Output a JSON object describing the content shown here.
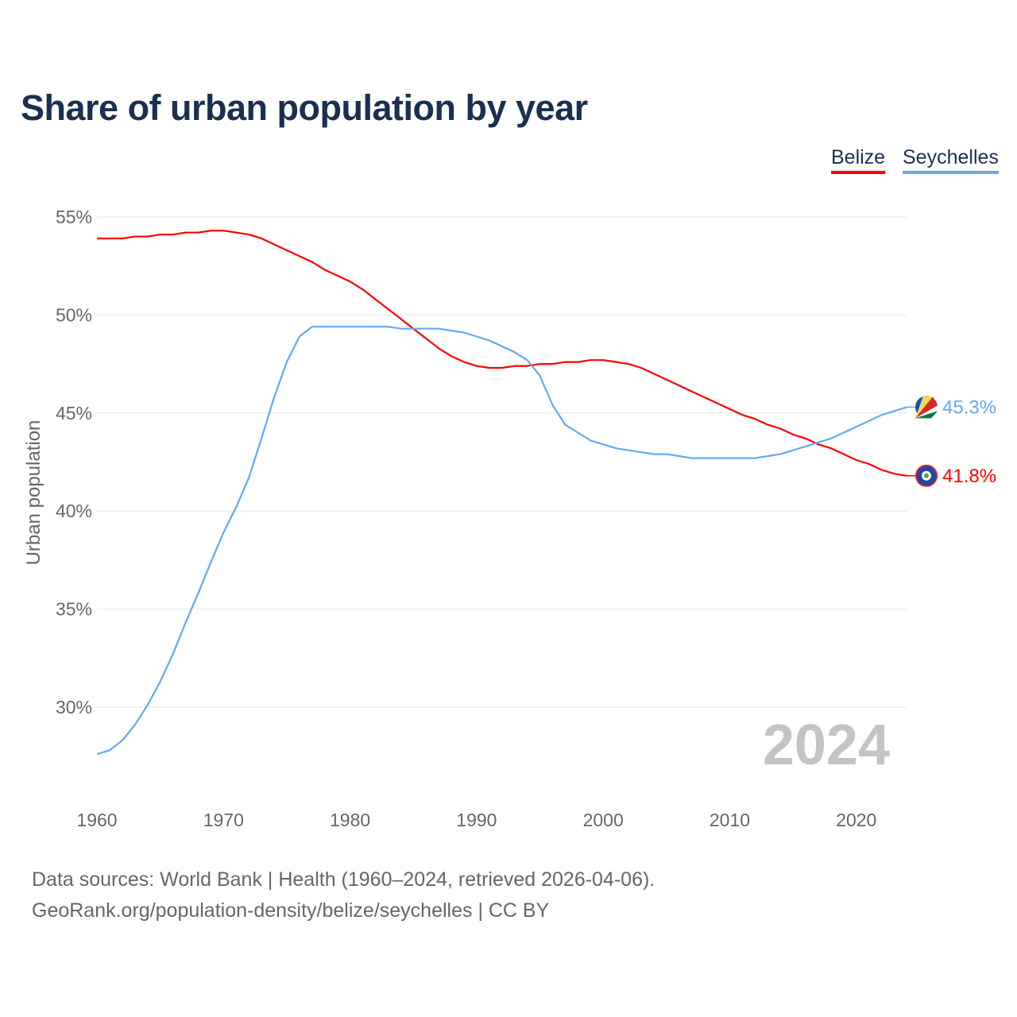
{
  "title": "Share of urban population by year",
  "footer": {
    "line1": "Data sources: World Bank | Health (1960–2024, retrieved 2026-04-06).",
    "line2": "GeoRank.org/population-density/belize/seychelles | CC BY"
  },
  "chart_data": {
    "type": "line",
    "title": "Share of urban population by year",
    "xlabel": "",
    "ylabel": "Urban population",
    "ylim": [
      25.5,
      55
    ],
    "xlim": [
      1960,
      2024
    ],
    "yticks": [
      30,
      35,
      40,
      45,
      50,
      55
    ],
    "ytick_labels": [
      "30%",
      "35%",
      "40%",
      "45%",
      "50%",
      "55%"
    ],
    "xticks": [
      1960,
      1970,
      1980,
      1990,
      2000,
      2010,
      2020
    ],
    "xtick_labels": [
      "1960",
      "1970",
      "1980",
      "1990",
      "2000",
      "2010",
      "2020"
    ],
    "grid": true,
    "legend_position": "top-right",
    "year_watermark": "2024",
    "x": [
      1960,
      1961,
      1962,
      1963,
      1964,
      1965,
      1966,
      1967,
      1968,
      1969,
      1970,
      1971,
      1972,
      1973,
      1974,
      1975,
      1976,
      1977,
      1978,
      1979,
      1980,
      1981,
      1982,
      1983,
      1984,
      1985,
      1986,
      1987,
      1988,
      1989,
      1990,
      1991,
      1992,
      1993,
      1994,
      1995,
      1996,
      1997,
      1998,
      1999,
      2000,
      2001,
      2002,
      2003,
      2004,
      2005,
      2006,
      2007,
      2008,
      2009,
      2010,
      2011,
      2012,
      2013,
      2014,
      2015,
      2016,
      2017,
      2018,
      2019,
      2020,
      2021,
      2022,
      2023,
      2024
    ],
    "series": [
      {
        "name": "Belize",
        "color": "#ff0000",
        "end_label": "41.8%",
        "values": [
          53.9,
          53.9,
          53.9,
          54.0,
          54.0,
          54.1,
          54.1,
          54.2,
          54.2,
          54.3,
          54.3,
          54.2,
          54.1,
          53.9,
          53.6,
          53.3,
          53.0,
          52.7,
          52.3,
          52.0,
          51.7,
          51.3,
          50.8,
          50.3,
          49.8,
          49.3,
          48.8,
          48.3,
          47.9,
          47.6,
          47.4,
          47.3,
          47.3,
          47.4,
          47.4,
          47.5,
          47.5,
          47.6,
          47.6,
          47.7,
          47.7,
          47.6,
          47.5,
          47.3,
          47.0,
          46.7,
          46.4,
          46.1,
          45.8,
          45.5,
          45.2,
          44.9,
          44.7,
          44.4,
          44.2,
          43.9,
          43.7,
          43.4,
          43.2,
          42.9,
          42.6,
          42.4,
          42.1,
          41.9,
          41.8
        ]
      },
      {
        "name": "Seychelles",
        "color": "#64a8f0",
        "end_label": "45.3%",
        "values": [
          27.6,
          27.8,
          28.3,
          29.1,
          30.1,
          31.3,
          32.7,
          34.3,
          35.8,
          37.4,
          38.9,
          40.2,
          41.7,
          43.7,
          45.8,
          47.6,
          48.9,
          49.4,
          49.4,
          49.4,
          49.4,
          49.4,
          49.4,
          49.4,
          49.3,
          49.3,
          49.3,
          49.3,
          49.2,
          49.1,
          48.9,
          48.7,
          48.4,
          48.1,
          47.7,
          46.9,
          45.4,
          44.4,
          44.0,
          43.6,
          43.4,
          43.2,
          43.1,
          43.0,
          42.9,
          42.9,
          42.8,
          42.7,
          42.7,
          42.7,
          42.7,
          42.7,
          42.7,
          42.8,
          42.9,
          43.1,
          43.3,
          43.5,
          43.7,
          44.0,
          44.3,
          44.6,
          44.9,
          45.1,
          45.3
        ]
      }
    ]
  }
}
